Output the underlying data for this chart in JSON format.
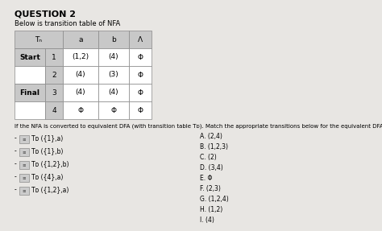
{
  "title": "QUESTION 2",
  "subtitle": "Below is transition table of NFA",
  "bg_color": "#e8e6e3",
  "table_header_row": [
    "Tₙ",
    "a",
    "b",
    "Λ"
  ],
  "table_rows": [
    [
      "Start",
      "1",
      "(1,2)",
      "(4)",
      "Φ"
    ],
    [
      "",
      "2",
      "(4)",
      "(3)",
      "Φ"
    ],
    [
      "Final",
      "3",
      "(4)",
      "(4)",
      "Φ"
    ],
    [
      "",
      "4",
      "Φ",
      "Φ",
      "Φ"
    ]
  ],
  "description": "If the NFA is converted to equivalent DFA (with transition table Tᴅ). Match the appropriate transitions below for the equivalent DFA.",
  "left_items": [
    "·  ≡ Tᴅ ({1},a)",
    "·  ≡ Tᴅ ({1},b)",
    "·  ≡ Tᴅ ({1,2},b)",
    "·  ≡ Tᴅ ({4},a)",
    "·  ≡ Tᴅ ({1,2},a)"
  ],
  "right_items": [
    "A. (2,4)",
    "B. (1,2,3)",
    "C. (2)",
    "D. (3,4)",
    "E. Φ",
    "F. (2,3)",
    "G. (1,2,4)",
    "H. (1,2)",
    "I. (4)"
  ],
  "cell_bg_white": "#ffffff",
  "cell_bg_gray": "#c8c8c8",
  "border_color": "#888888",
  "title_fs": 8,
  "body_fs": 6,
  "table_fs": 6.5
}
